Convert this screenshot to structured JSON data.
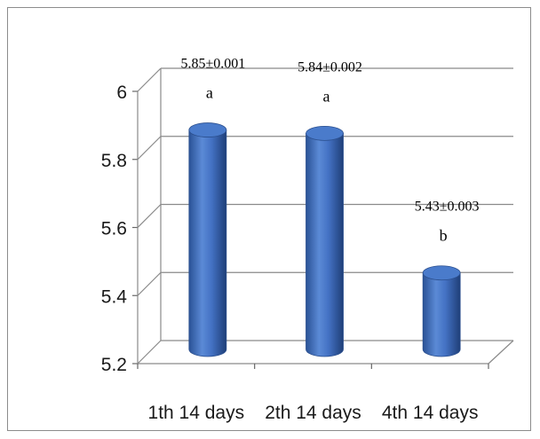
{
  "chart_data": {
    "type": "bar",
    "style": "3d-cylinder",
    "categories": [
      "1th 14 days",
      "2th 14 days",
      "4th 14 days"
    ],
    "series": [
      {
        "values": [
          5.85,
          5.84,
          5.43
        ],
        "data_labels": [
          "5.85±0.001",
          "5.84±0.002",
          "5.43±0.003"
        ],
        "group_letters": [
          "a",
          "a",
          "b"
        ]
      }
    ],
    "title": "",
    "xlabel": "",
    "ylabel": "",
    "ylim": [
      5.2,
      6
    ],
    "yticks": [
      "5.2",
      "5.4",
      "5.6",
      "5.8",
      "6"
    ],
    "grid": true,
    "legend": "none",
    "bar_color": "#3f6fbf"
  }
}
